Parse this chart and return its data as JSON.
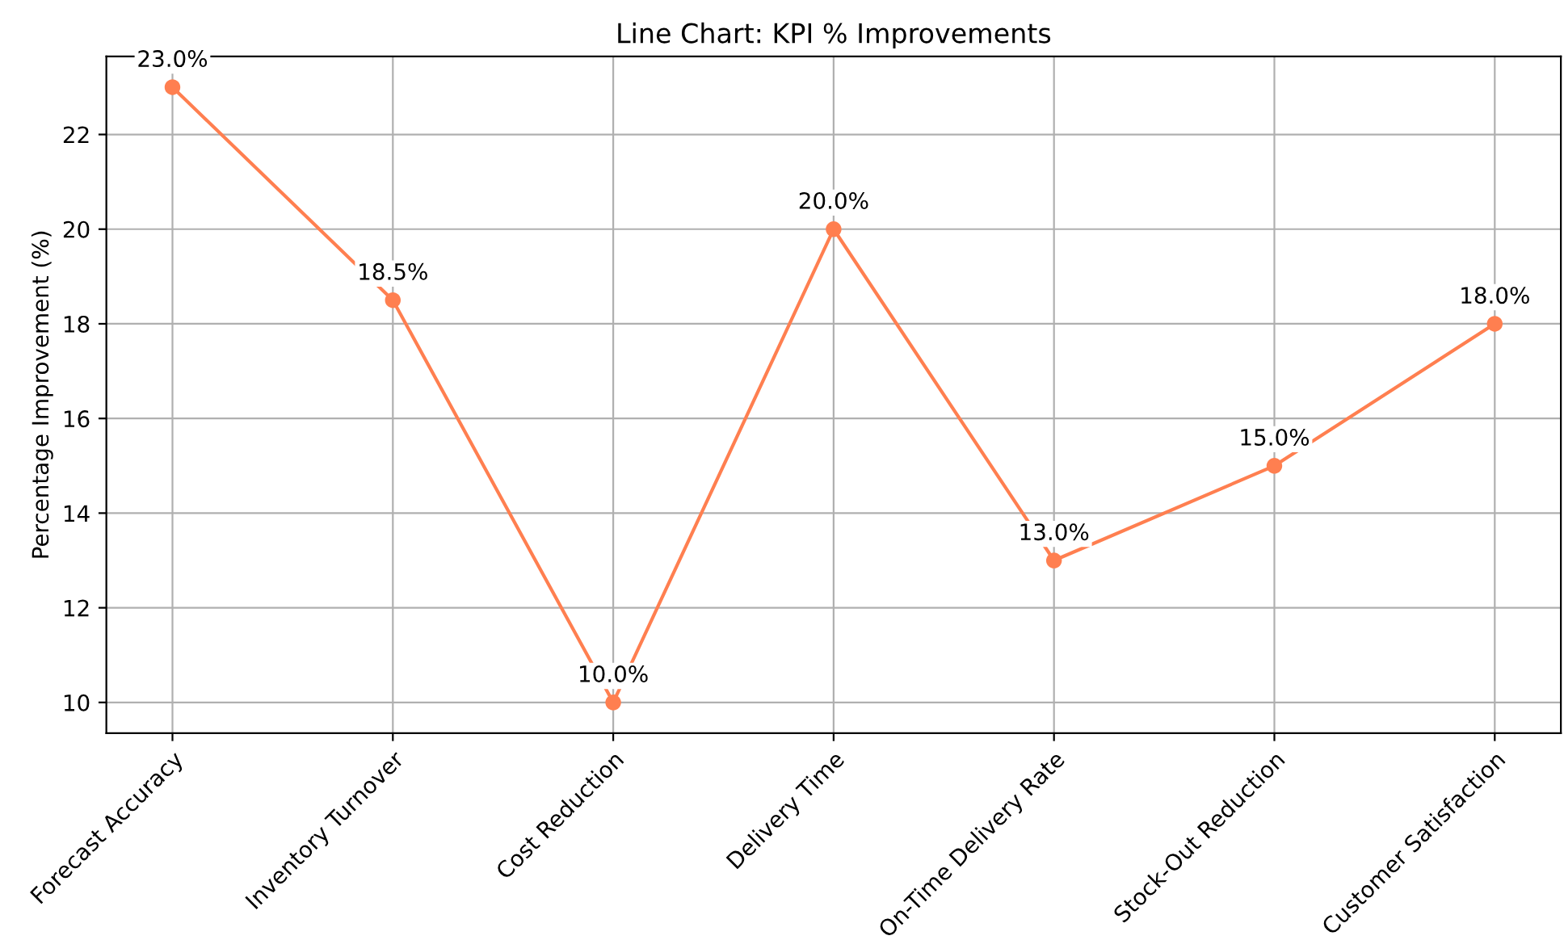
{
  "chart_data": {
    "type": "line",
    "title": "Line Chart: KPI % Improvements",
    "ylabel": "Percentage Improvement (%)",
    "categories": [
      "Forecast Accuracy",
      "Inventory Turnover",
      "Cost Reduction",
      "Delivery Time",
      "On-Time Delivery Rate",
      "Stock-Out Reduction",
      "Customer Satisfaction"
    ],
    "series": [
      {
        "color": "#ff7f50",
        "values": [
          23.0,
          18.5,
          10.0,
          20.0,
          13.0,
          15.0,
          18.0
        ],
        "value_labels": [
          "23.0%",
          "18.5%",
          "10.0%",
          "20.0%",
          "13.0%",
          "15.0%",
          "18.0%"
        ]
      }
    ],
    "ylim": [
      9.35,
      23.65
    ],
    "yticks": [
      10,
      12,
      14,
      16,
      18,
      20,
      22
    ],
    "grid": true,
    "marker": "circle",
    "line_style": "solid"
  }
}
